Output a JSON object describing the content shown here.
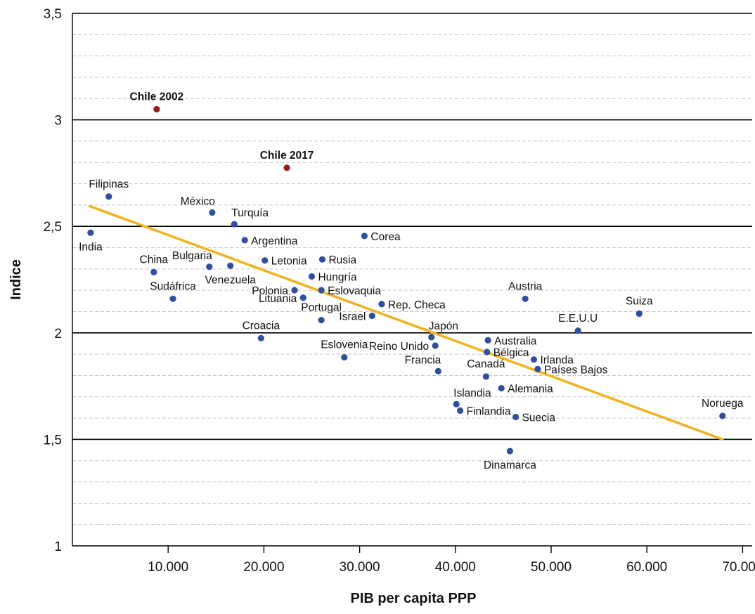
{
  "chart_data": {
    "type": "scatter",
    "title": "",
    "xlabel": "PIB per capita PPP",
    "ylabel": "Indice",
    "xlim": [
      0,
      71000
    ],
    "ylim": [
      1,
      3.5
    ],
    "x_ticks": [
      10000,
      20000,
      30000,
      40000,
      50000,
      60000,
      70000
    ],
    "x_tick_labels": [
      "10.000",
      "20.000",
      "30.000",
      "40.000",
      "50.000",
      "60.000",
      "70.000"
    ],
    "y_ticks": [
      1,
      1.5,
      2,
      2.5,
      3,
      3.5
    ],
    "y_tick_labels": [
      "1",
      "1,5",
      "2",
      "2,5",
      "3",
      "3,5"
    ],
    "grid": {
      "major": true,
      "minor_dashed": true,
      "minor_step": 0.1
    },
    "colors": {
      "point": "#2d4f9e",
      "highlight": "#9b1b1e",
      "trend": "#f2b21b",
      "grid_major": "#000000",
      "grid_minor": "#c8c8c8"
    },
    "trendline": {
      "x": [
        1800,
        67900
      ],
      "y": [
        2.595,
        1.5
      ]
    },
    "points": [
      {
        "name": "Chile 2002",
        "x": 8800,
        "y": 3.05,
        "highlight": true,
        "label_pos": "above"
      },
      {
        "name": "Chile 2017",
        "x": 22400,
        "y": 2.775,
        "highlight": true,
        "label_pos": "above"
      },
      {
        "name": "Filipinas",
        "x": 3800,
        "y": 2.64,
        "label_pos": "above"
      },
      {
        "name": "India",
        "x": 1900,
        "y": 2.47,
        "label_pos": "below"
      },
      {
        "name": "México",
        "x": 14600,
        "y": 2.565,
        "label_pos": "above-left"
      },
      {
        "name": "Turquía",
        "x": 16900,
        "y": 2.51,
        "label_pos": "above-right"
      },
      {
        "name": "Argentina",
        "x": 18000,
        "y": 2.435,
        "label_pos": "right"
      },
      {
        "name": "Corea",
        "x": 30500,
        "y": 2.455,
        "label_pos": "right"
      },
      {
        "name": "Rusia",
        "x": 26100,
        "y": 2.345,
        "label_pos": "right"
      },
      {
        "name": "Letonia",
        "x": 20100,
        "y": 2.34,
        "label_pos": "right"
      },
      {
        "name": "China",
        "x": 8500,
        "y": 2.285,
        "label_pos": "above"
      },
      {
        "name": "Bulgaria",
        "x": 14300,
        "y": 2.31,
        "label_pos": "above-left"
      },
      {
        "name": "Venezuela",
        "x": 16500,
        "y": 2.315,
        "label_pos": "below"
      },
      {
        "name": "Hungría",
        "x": 25000,
        "y": 2.265,
        "label_pos": "right"
      },
      {
        "name": "Polonia",
        "x": 23200,
        "y": 2.2,
        "label_pos": "left"
      },
      {
        "name": "Eslovaquia",
        "x": 26000,
        "y": 2.2,
        "label_pos": "right"
      },
      {
        "name": "Lituania",
        "x": 24100,
        "y": 2.165,
        "label_pos": "left"
      },
      {
        "name": "Sudáfrica",
        "x": 10500,
        "y": 2.16,
        "label_pos": "above"
      },
      {
        "name": "Portugal",
        "x": 26000,
        "y": 2.06,
        "label_pos": "above"
      },
      {
        "name": "Rep. Checa",
        "x": 32300,
        "y": 2.135,
        "label_pos": "right"
      },
      {
        "name": "Israel",
        "x": 31300,
        "y": 2.08,
        "label_pos": "left"
      },
      {
        "name": "Austria",
        "x": 47300,
        "y": 2.16,
        "label_pos": "above"
      },
      {
        "name": "Suiza",
        "x": 59200,
        "y": 2.09,
        "label_pos": "above"
      },
      {
        "name": "E.E.U.U",
        "x": 52800,
        "y": 2.01,
        "label_pos": "above"
      },
      {
        "name": "Croacia",
        "x": 19700,
        "y": 1.975,
        "label_pos": "above"
      },
      {
        "name": "Japón",
        "x": 37500,
        "y": 1.98,
        "label_pos": "above-right"
      },
      {
        "name": "Australia",
        "x": 43400,
        "y": 1.965,
        "label_pos": "right"
      },
      {
        "name": "Reino Unido",
        "x": 37900,
        "y": 1.94,
        "label_pos": "left"
      },
      {
        "name": "Bélgica",
        "x": 43300,
        "y": 1.91,
        "label_pos": "right"
      },
      {
        "name": "Irlanda",
        "x": 48200,
        "y": 1.875,
        "label_pos": "right"
      },
      {
        "name": "Eslovenia",
        "x": 28400,
        "y": 1.885,
        "label_pos": "above"
      },
      {
        "name": "Países Bajos",
        "x": 48600,
        "y": 1.83,
        "label_pos": "right"
      },
      {
        "name": "Francia",
        "x": 38200,
        "y": 1.82,
        "label_pos": "above-left"
      },
      {
        "name": "Canadá",
        "x": 43200,
        "y": 1.795,
        "label_pos": "above"
      },
      {
        "name": "Alemania",
        "x": 44800,
        "y": 1.74,
        "label_pos": "right"
      },
      {
        "name": "Islandia",
        "x": 40100,
        "y": 1.665,
        "label_pos": "above-right"
      },
      {
        "name": "Finlandia",
        "x": 40500,
        "y": 1.635,
        "label_pos": "right"
      },
      {
        "name": "Suecia",
        "x": 46300,
        "y": 1.605,
        "label_pos": "right"
      },
      {
        "name": "Noruega",
        "x": 67900,
        "y": 1.61,
        "label_pos": "above"
      },
      {
        "name": "Dinamarca",
        "x": 45700,
        "y": 1.445,
        "label_pos": "below"
      }
    ]
  }
}
